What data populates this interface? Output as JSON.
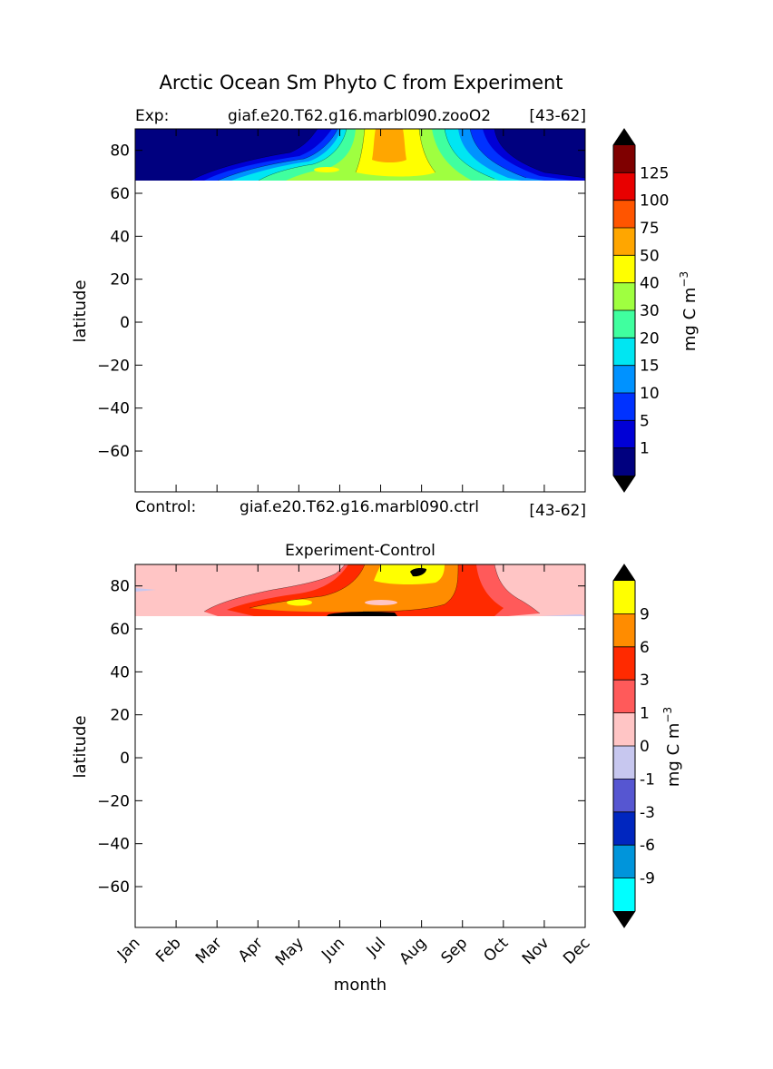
{
  "figure": {
    "title": "Arctic Ocean Sm Phyto C from Experiment",
    "xlabel": "month"
  },
  "chart_data": [
    {
      "type": "contour",
      "label_left": "Exp:",
      "label_center": "giaf.e20.T62.g16.marbl090.zooO2",
      "label_right": "[43-62]",
      "ylabel": "latitude",
      "x_categories": [
        "Jan",
        "Feb",
        "Mar",
        "Apr",
        "May",
        "Jun",
        "Jul",
        "Aug",
        "Sep",
        "Oct",
        "Nov",
        "Dec"
      ],
      "x_tick_labels_shown": false,
      "y_ticks": [
        80,
        60,
        40,
        20,
        0,
        -20,
        -40,
        -60
      ],
      "y_tick_labels": [
        "80",
        "60",
        "40",
        "20",
        "0",
        "−20",
        "−40",
        "−60"
      ],
      "ylim": [
        -79,
        90
      ],
      "data_lat_range": [
        66,
        90
      ],
      "colorbar": {
        "label": "mg C m",
        "label_sup": "−3",
        "levels": [
          "1",
          "5",
          "10",
          "15",
          "20",
          "30",
          "40",
          "50",
          "75",
          "100",
          "125"
        ],
        "colors": [
          "#00007f",
          "#0000d6",
          "#0032ff",
          "#0092ff",
          "#00e6f2",
          "#40ff9f",
          "#9fff40",
          "#ffff00",
          "#ffa600",
          "#ff5500",
          "#e80000",
          "#7f0000"
        ],
        "extend_min_color": "#000000",
        "extend_max_color": "#000000"
      },
      "pattern": "low values (<1) Jan–Apr and Oct–Dec; blooms from late May peaking ~50–75 in July near 80–90°N, 40–50 near 70°N"
    },
    {
      "type": "contour",
      "title": "Experiment-Control",
      "label_left": "Control:",
      "label_center": "giaf.e20.T62.g16.marbl090.ctrl",
      "label_right": "[43-62]",
      "ylabel": "latitude",
      "x_categories": [
        "Jan",
        "Feb",
        "Mar",
        "Apr",
        "May",
        "Jun",
        "Jul",
        "Aug",
        "Sep",
        "Oct",
        "Nov",
        "Dec"
      ],
      "y_ticks": [
        80,
        60,
        40,
        20,
        0,
        -20,
        -40,
        -60
      ],
      "y_tick_labels": [
        "80",
        "60",
        "40",
        "20",
        "0",
        "−20",
        "−40",
        "−60"
      ],
      "ylim": [
        -79,
        90
      ],
      "data_lat_range": [
        66,
        90
      ],
      "colorbar": {
        "label": "mg C m",
        "label_sup": "−3",
        "levels": [
          "-9",
          "-6",
          "-3",
          "-1",
          "0",
          "1",
          "3",
          "6",
          "9"
        ],
        "colors": [
          "#00ffff",
          "#0095db",
          "#0026bf",
          "#5656d1",
          "#c7c7ef",
          "#ffc5c5",
          "#ff5a5a",
          "#ff2a00",
          "#ff8c00",
          "#ffff00"
        ],
        "extend_min_color": "#000000",
        "extend_max_color": "#000000"
      },
      "pattern": "0–1 difference in winter; positive differences 3–9 from June through September, >9 patches in July–August near 88°N and 67°N"
    }
  ]
}
